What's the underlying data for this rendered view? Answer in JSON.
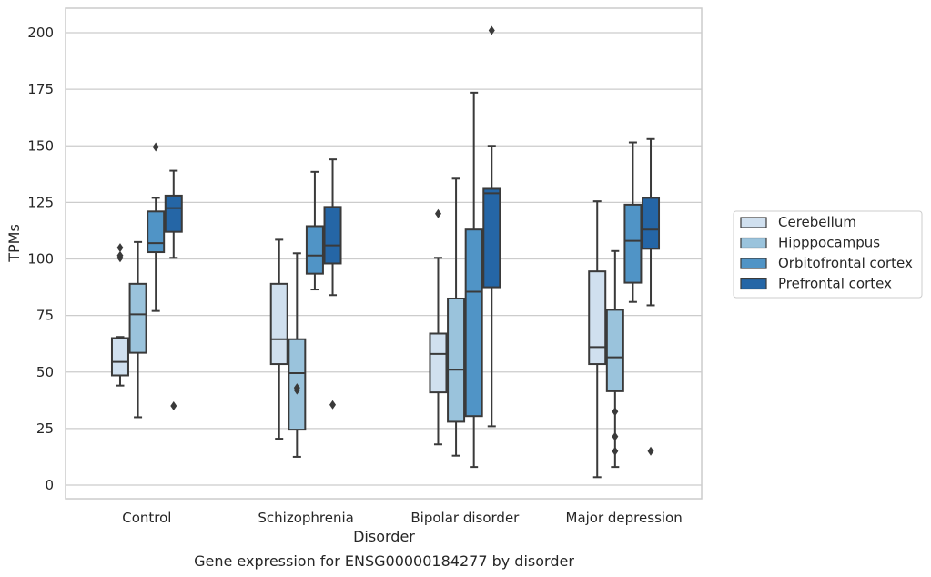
{
  "chart_data": {
    "type": "box",
    "title": "",
    "caption": "Gene expression for ENSG00000184277 by disorder",
    "xlabel": "Disorder",
    "ylabel": "TPMs",
    "ylim": [
      -6,
      211
    ],
    "yticks": [
      0,
      25,
      50,
      75,
      100,
      125,
      150,
      175,
      200
    ],
    "grid": "horizontal",
    "legend_position": "right",
    "categories": [
      "Control",
      "Schizophrenia",
      "Bipolar disorder",
      "Major depression"
    ],
    "series": [
      {
        "name": "Cerebellum",
        "color": "#d0e0ef",
        "boxes": [
          {
            "whislo": 44,
            "q1": 48.5,
            "med": 54.5,
            "q3": 65,
            "whishi": 65.5,
            "fliers": [
              100.5,
              101.5,
              105
            ]
          },
          {
            "whislo": 20.5,
            "q1": 53.5,
            "med": 64.5,
            "q3": 89,
            "whishi": 108.5,
            "fliers": []
          },
          {
            "whislo": 18,
            "q1": 41,
            "med": 58,
            "q3": 67,
            "whishi": 100.5,
            "fliers": [
              120
            ]
          },
          {
            "whislo": 3.5,
            "q1": 53.5,
            "med": 61,
            "q3": 94.5,
            "whishi": 125.5,
            "fliers": []
          }
        ]
      },
      {
        "name": "Hipppocampus",
        "color": "#9ac3dc",
        "boxes": [
          {
            "whislo": 30,
            "q1": 58.5,
            "med": 75.5,
            "q3": 89,
            "whishi": 107.5,
            "fliers": []
          },
          {
            "whislo": 12.5,
            "q1": 24.5,
            "med": 49.5,
            "q3": 64.5,
            "whishi": 102.5,
            "fliers": [
              42,
              43
            ]
          },
          {
            "whislo": 13,
            "q1": 28,
            "med": 51,
            "q3": 82.5,
            "whishi": 135.5,
            "fliers": []
          },
          {
            "whislo": 8,
            "q1": 41.5,
            "med": 56.5,
            "q3": 77.5,
            "whishi": 103.5,
            "fliers": [
              15,
              21.5,
              32.5
            ]
          }
        ]
      },
      {
        "name": "Orbitofrontal cortex",
        "color": "#5094c6",
        "boxes": [
          {
            "whislo": 77,
            "q1": 103,
            "med": 107,
            "q3": 121,
            "whishi": 127,
            "fliers": [
              149.5
            ]
          },
          {
            "whislo": 86.5,
            "q1": 93.5,
            "med": 101.5,
            "q3": 114.5,
            "whishi": 138.5,
            "fliers": []
          },
          {
            "whislo": 8,
            "q1": 30.5,
            "med": 85.5,
            "q3": 113,
            "whishi": 173.5,
            "fliers": []
          },
          {
            "whislo": 81,
            "q1": 89.5,
            "med": 108,
            "q3": 124,
            "whishi": 151.5,
            "fliers": []
          }
        ]
      },
      {
        "name": "Prefrontal cortex",
        "color": "#2566a6",
        "boxes": [
          {
            "whislo": 100.5,
            "q1": 112,
            "med": 122.5,
            "q3": 128,
            "whishi": 139,
            "fliers": [
              35
            ]
          },
          {
            "whislo": 84,
            "q1": 98,
            "med": 106,
            "q3": 123,
            "whishi": 144,
            "fliers": [
              35.5
            ]
          },
          {
            "whislo": 26,
            "q1": 87.5,
            "med": 129,
            "q3": 131,
            "whishi": 150,
            "fliers": [
              201
            ]
          },
          {
            "whislo": 79.5,
            "q1": 104.5,
            "med": 113,
            "q3": 127,
            "whishi": 153,
            "fliers": [
              15
            ]
          }
        ]
      }
    ]
  }
}
